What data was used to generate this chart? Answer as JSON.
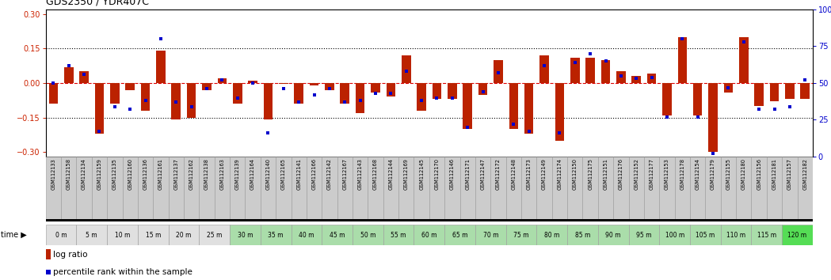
{
  "title": "GDS2350 / YDR407C",
  "samples": [
    "GSM112133",
    "GSM112158",
    "GSM112134",
    "GSM112159",
    "GSM112135",
    "GSM112160",
    "GSM112136",
    "GSM112161",
    "GSM112137",
    "GSM112162",
    "GSM112138",
    "GSM112163",
    "GSM112139",
    "GSM112164",
    "GSM112140",
    "GSM112165",
    "GSM112141",
    "GSM112166",
    "GSM112142",
    "GSM112167",
    "GSM112143",
    "GSM112168",
    "GSM112144",
    "GSM112169",
    "GSM112145",
    "GSM112170",
    "GSM112146",
    "GSM112171",
    "GSM112147",
    "GSM112172",
    "GSM112148",
    "GSM112173",
    "GSM112149",
    "GSM112174",
    "GSM112150",
    "GSM112175",
    "GSM112151",
    "GSM112176",
    "GSM112152",
    "GSM112177",
    "GSM112153",
    "GSM112178",
    "GSM112154",
    "GSM112179",
    "GSM112155",
    "GSM112180",
    "GSM112156",
    "GSM112181",
    "GSM112157",
    "GSM112182"
  ],
  "log_ratio": [
    -0.09,
    0.07,
    0.05,
    -0.22,
    -0.09,
    -0.03,
    -0.12,
    0.14,
    -0.16,
    -0.15,
    -0.03,
    0.02,
    -0.09,
    0.01,
    -0.16,
    -0.005,
    -0.09,
    -0.01,
    -0.03,
    -0.09,
    -0.13,
    -0.04,
    -0.06,
    0.12,
    -0.12,
    -0.07,
    -0.07,
    -0.2,
    -0.05,
    0.1,
    -0.2,
    -0.22,
    0.12,
    -0.25,
    0.11,
    0.11,
    0.1,
    0.05,
    0.03,
    0.04,
    -0.14,
    0.2,
    -0.14,
    -0.3,
    -0.04,
    0.2,
    -0.1,
    -0.08,
    -0.07,
    -0.07
  ],
  "percentile": [
    50,
    62,
    56,
    17,
    34,
    32,
    38,
    80,
    37,
    34,
    46,
    52,
    40,
    50,
    16,
    46,
    37,
    42,
    46,
    37,
    38,
    43,
    43,
    58,
    38,
    40,
    40,
    20,
    44,
    57,
    22,
    17,
    62,
    16,
    64,
    70,
    65,
    55,
    53,
    54,
    27,
    80,
    27,
    2,
    47,
    78,
    32,
    32,
    34,
    52
  ],
  "time_groups": [
    {
      "label": "0 m",
      "start": 0,
      "end": 2,
      "color": "#e0e0e0"
    },
    {
      "label": "5 m",
      "start": 2,
      "end": 4,
      "color": "#e0e0e0"
    },
    {
      "label": "10 m",
      "start": 4,
      "end": 6,
      "color": "#e0e0e0"
    },
    {
      "label": "15 m",
      "start": 6,
      "end": 8,
      "color": "#e0e0e0"
    },
    {
      "label": "20 m",
      "start": 8,
      "end": 10,
      "color": "#e0e0e0"
    },
    {
      "label": "25 m",
      "start": 10,
      "end": 12,
      "color": "#e0e0e0"
    },
    {
      "label": "30 m",
      "start": 12,
      "end": 14,
      "color": "#aaddaa"
    },
    {
      "label": "35 m",
      "start": 14,
      "end": 16,
      "color": "#aaddaa"
    },
    {
      "label": "40 m",
      "start": 16,
      "end": 18,
      "color": "#aaddaa"
    },
    {
      "label": "45 m",
      "start": 18,
      "end": 20,
      "color": "#aaddaa"
    },
    {
      "label": "50 m",
      "start": 20,
      "end": 22,
      "color": "#aaddaa"
    },
    {
      "label": "55 m",
      "start": 22,
      "end": 24,
      "color": "#aaddaa"
    },
    {
      "label": "60 m",
      "start": 24,
      "end": 26,
      "color": "#aaddaa"
    },
    {
      "label": "65 m",
      "start": 26,
      "end": 28,
      "color": "#aaddaa"
    },
    {
      "label": "70 m",
      "start": 28,
      "end": 30,
      "color": "#aaddaa"
    },
    {
      "label": "75 m",
      "start": 30,
      "end": 32,
      "color": "#aaddaa"
    },
    {
      "label": "80 m",
      "start": 32,
      "end": 34,
      "color": "#aaddaa"
    },
    {
      "label": "85 m",
      "start": 34,
      "end": 36,
      "color": "#aaddaa"
    },
    {
      "label": "90 m",
      "start": 36,
      "end": 38,
      "color": "#aaddaa"
    },
    {
      "label": "95 m",
      "start": 38,
      "end": 40,
      "color": "#aaddaa"
    },
    {
      "label": "100 m",
      "start": 40,
      "end": 42,
      "color": "#aaddaa"
    },
    {
      "label": "105 m",
      "start": 42,
      "end": 44,
      "color": "#aaddaa"
    },
    {
      "label": "110 m",
      "start": 44,
      "end": 46,
      "color": "#aaddaa"
    },
    {
      "label": "115 m",
      "start": 46,
      "end": 48,
      "color": "#aaddaa"
    },
    {
      "label": "120 m",
      "start": 48,
      "end": 50,
      "color": "#55dd55"
    }
  ],
  "ylim": [
    -0.32,
    0.32
  ],
  "y2lim": [
    0,
    100
  ],
  "bar_color": "#bb2200",
  "scatter_color": "#0000cc",
  "zero_line_color": "#dd0000",
  "sample_bg_color": "#cccccc",
  "sample_edge_color": "#999999",
  "time_edge_color": "#999999",
  "fig_width": 10.49,
  "fig_height": 3.54,
  "dpi": 100
}
